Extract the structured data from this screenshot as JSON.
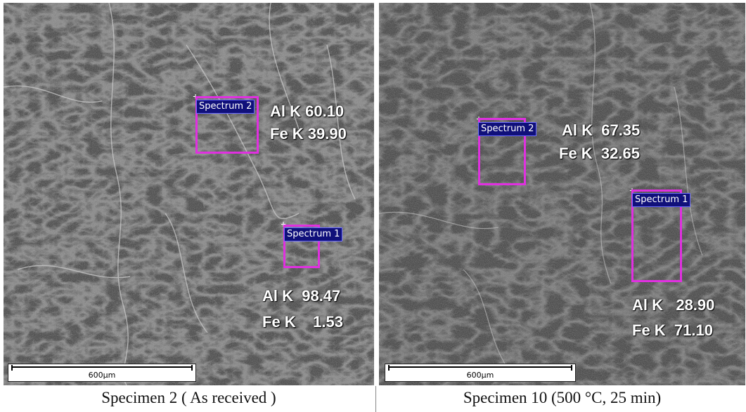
{
  "panels": [
    {
      "spectra": [
        {
          "label": "Spectrum 2",
          "al": "Al K 60.10",
          "fe": "Fe K 39.90"
        },
        {
          "label": "Spectrum 1",
          "al": "Al K  98.47",
          "fe": "Fe K    1.53"
        }
      ],
      "scale_label": "600µm",
      "caption": "Specimen 2 ( As received )"
    },
    {
      "spectra": [
        {
          "label": "Spectrum 2",
          "al": "Al K  67.35",
          "fe": "Fe K  32.65"
        },
        {
          "label": "Spectrum 1",
          "al": "Al K   28.90",
          "fe": "Fe K  71.10"
        }
      ],
      "scale_label": "600µm",
      "caption": "Specimen 10 (500 °C, 25 min)"
    }
  ],
  "colors": {
    "spectrum_box": "#e030e0",
    "spectrum_tag_bg": "#10107a",
    "text_overlay": "#ffffff"
  }
}
